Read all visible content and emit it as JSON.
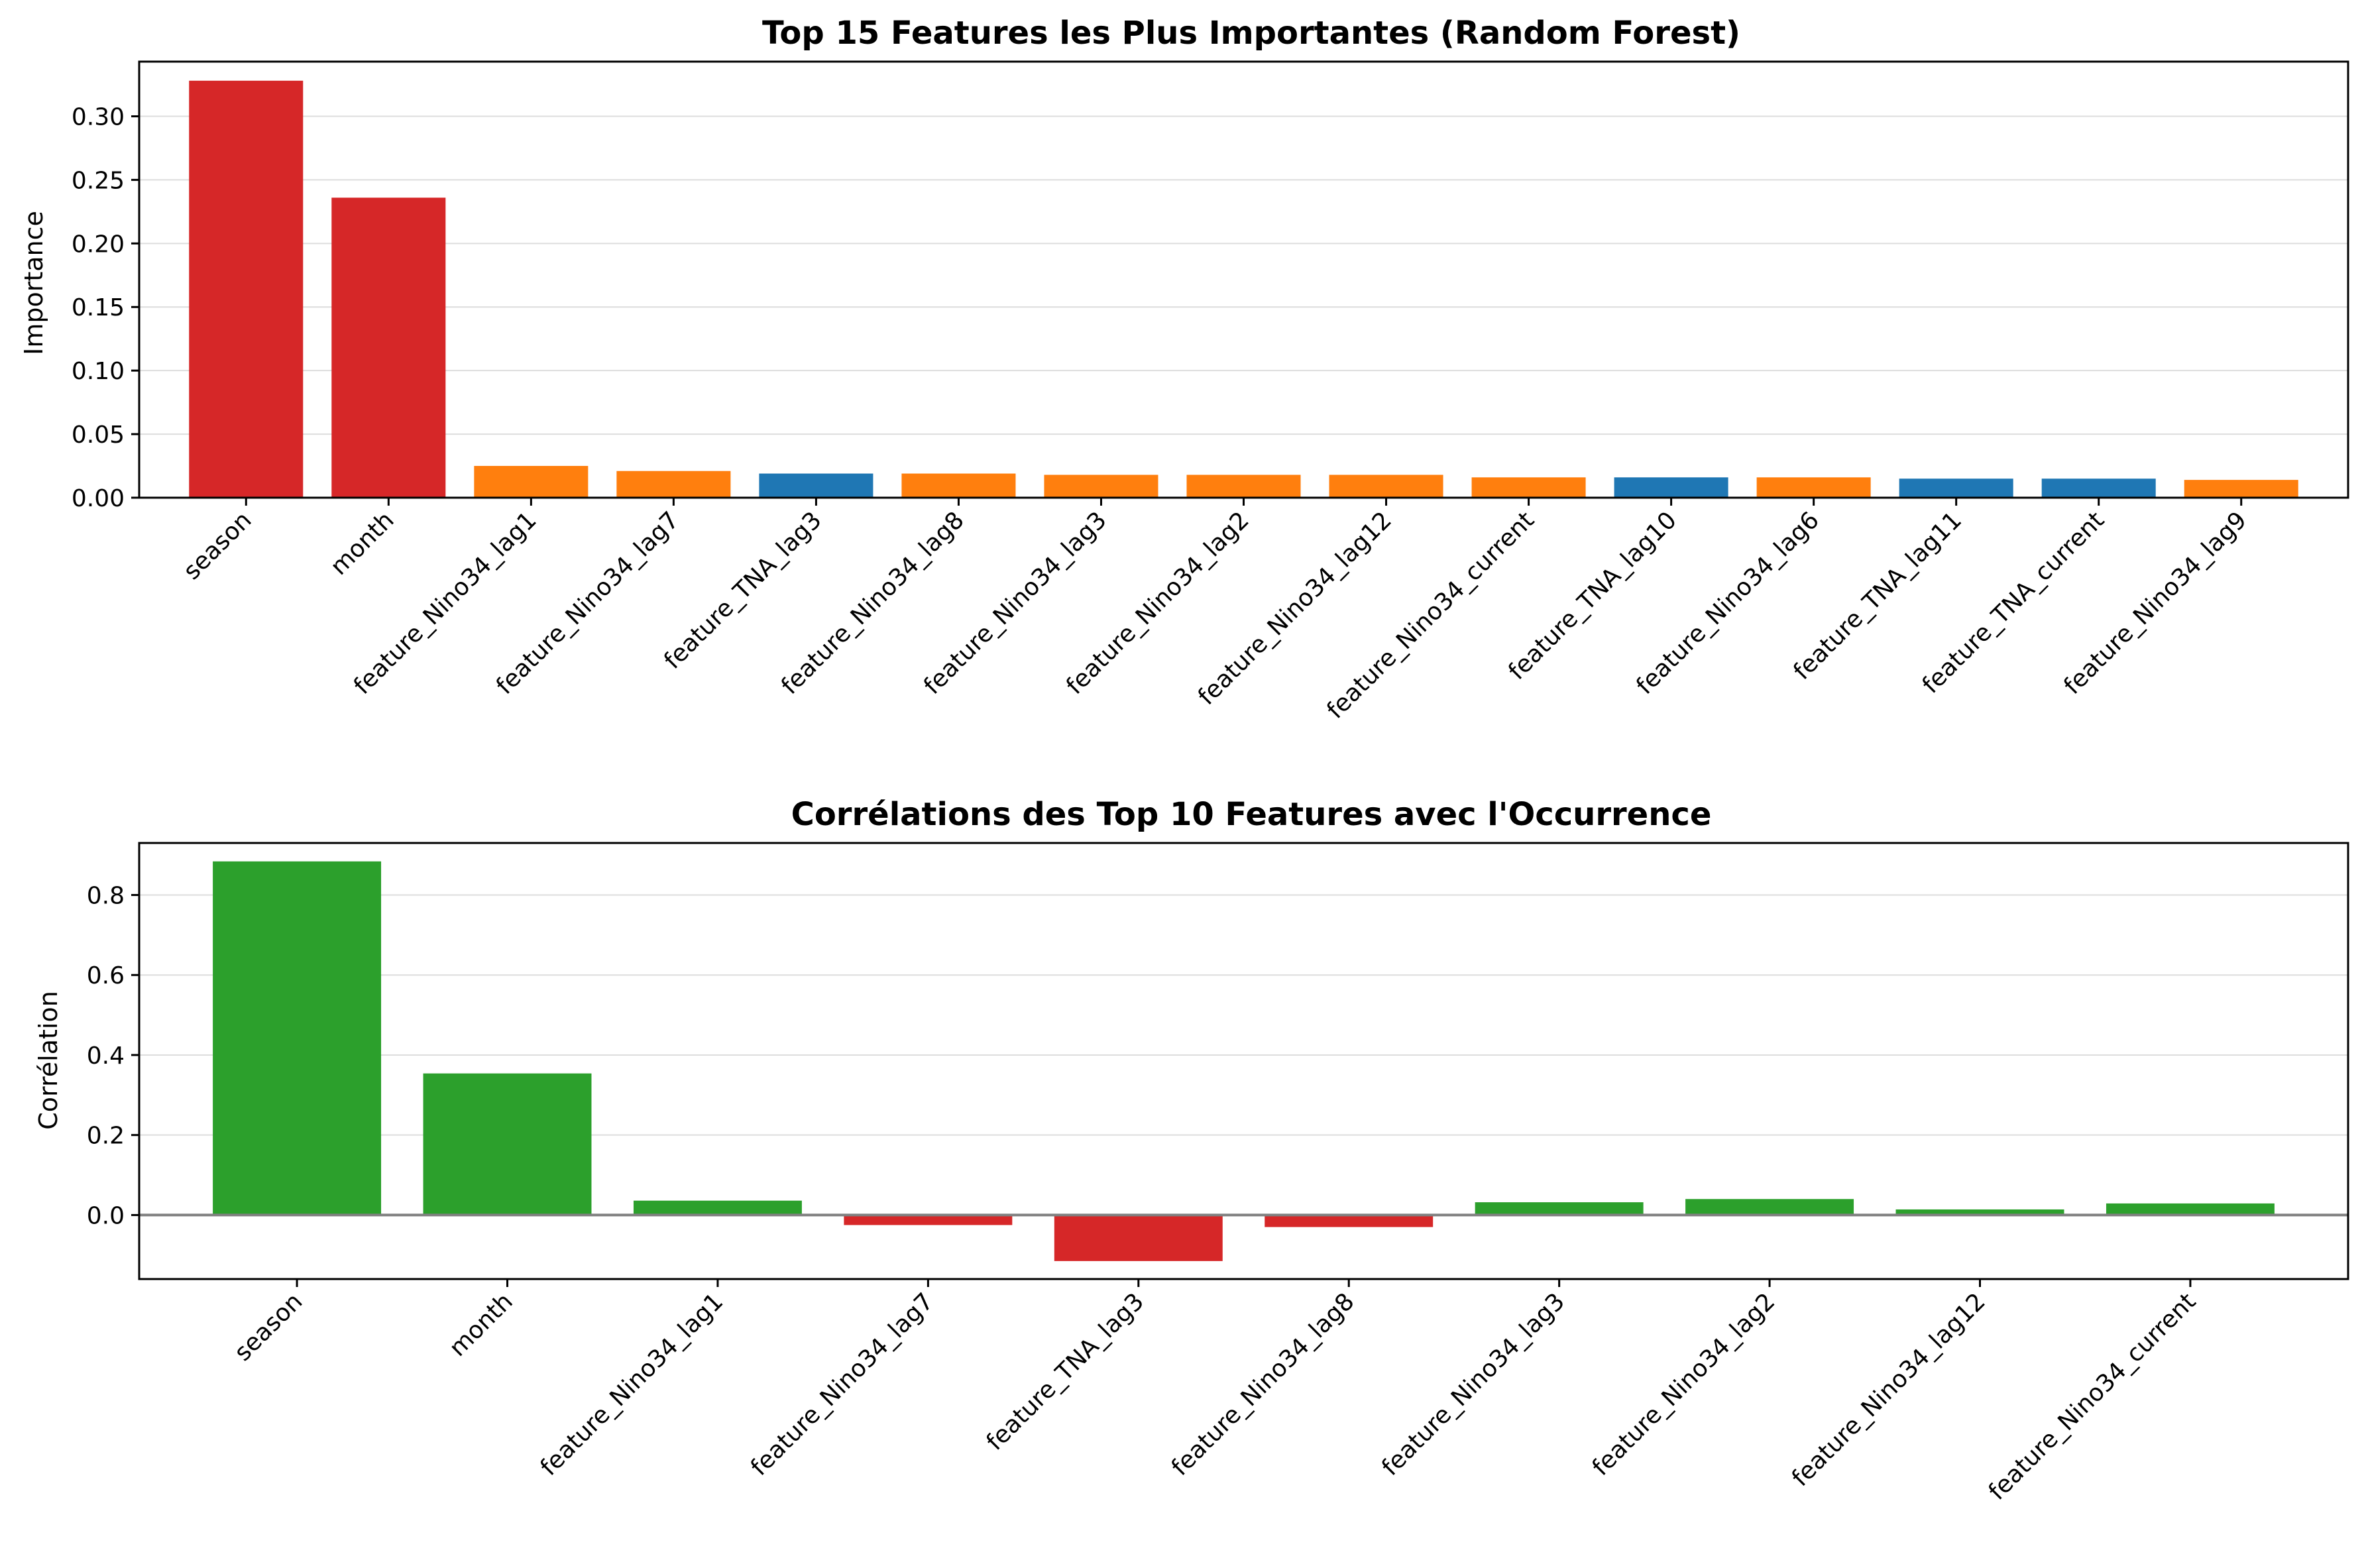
{
  "chart_data": [
    {
      "type": "bar",
      "title": "Top 15 Features les Plus Importantes (Random Forest)",
      "xlabel": "",
      "ylabel": "Importance",
      "ylim": [
        0,
        0.343
      ],
      "yticks": [
        0.0,
        0.05,
        0.1,
        0.15,
        0.2,
        0.25,
        0.3
      ],
      "ytick_labels": [
        "0.00",
        "0.05",
        "0.10",
        "0.15",
        "0.20",
        "0.25",
        "0.30"
      ],
      "grid": "y",
      "categories": [
        "season",
        "month",
        "feature_Nino34_lag1",
        "feature_Nino34_lag7",
        "feature_TNA_lag3",
        "feature_Nino34_lag8",
        "feature_Nino34_lag3",
        "feature_Nino34_lag2",
        "feature_Nino34_lag12",
        "feature_Nino34_current",
        "feature_TNA_lag10",
        "feature_Nino34_lag6",
        "feature_TNA_lag11",
        "feature_TNA_current",
        "feature_Nino34_lag9"
      ],
      "values": [
        0.328,
        0.236,
        0.025,
        0.021,
        0.019,
        0.019,
        0.018,
        0.018,
        0.018,
        0.016,
        0.016,
        0.016,
        0.015,
        0.015,
        0.014
      ],
      "colors": [
        "#d62728",
        "#d62728",
        "#ff7f0e",
        "#ff7f0e",
        "#1f77b4",
        "#ff7f0e",
        "#ff7f0e",
        "#ff7f0e",
        "#ff7f0e",
        "#ff7f0e",
        "#1f77b4",
        "#ff7f0e",
        "#1f77b4",
        "#1f77b4",
        "#ff7f0e"
      ]
    },
    {
      "type": "bar",
      "title": "Corrélations des Top 10 Features avec l'Occurrence",
      "xlabel": "",
      "ylabel": "Corrélation",
      "ylim": [
        -0.16,
        0.93
      ],
      "yticks": [
        0.0,
        0.2,
        0.4,
        0.6,
        0.8
      ],
      "ytick_labels": [
        "0.0",
        "0.2",
        "0.4",
        "0.6",
        "0.8"
      ],
      "grid": "y",
      "zero_line": true,
      "categories": [
        "season",
        "month",
        "feature_Nino34_lag1",
        "feature_Nino34_lag7",
        "feature_TNA_lag3",
        "feature_Nino34_lag8",
        "feature_Nino34_lag3",
        "feature_Nino34_lag2",
        "feature_Nino34_lag12",
        "feature_Nino34_current"
      ],
      "values": [
        0.884,
        0.354,
        0.036,
        -0.025,
        -0.115,
        -0.03,
        0.032,
        0.04,
        0.014,
        0.029
      ],
      "positive_color": "#2ca02c",
      "negative_color": "#d62728"
    }
  ]
}
